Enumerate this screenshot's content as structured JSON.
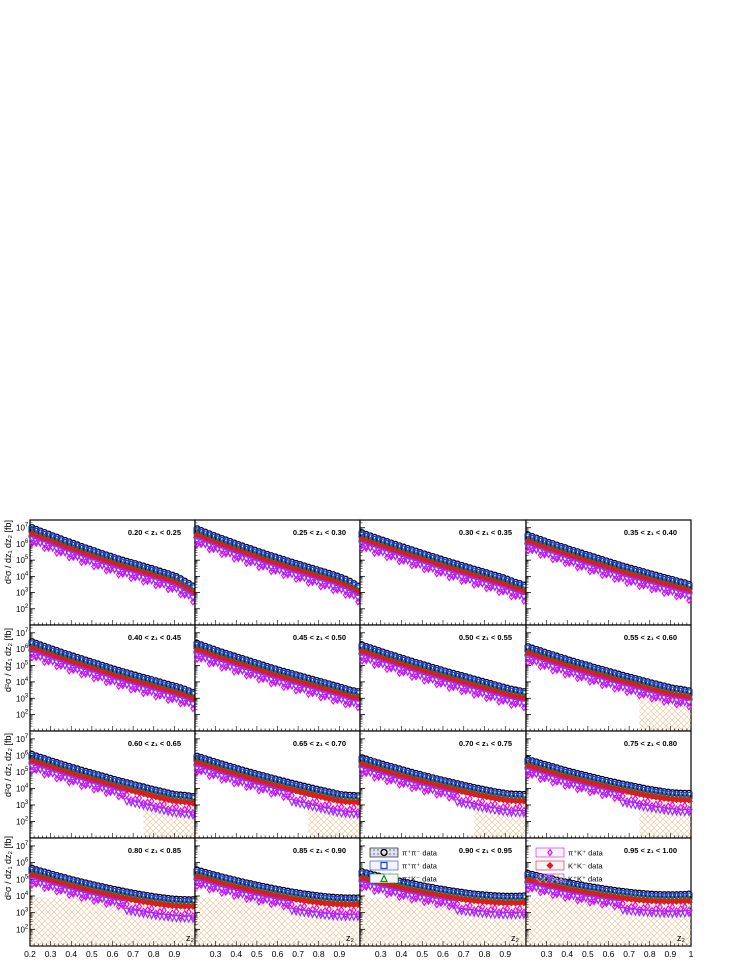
{
  "figure": {
    "ylabel": "d²σ / dz₁ dz₂ [fb]",
    "xlabel": "z₂",
    "xticks": [
      "0.2",
      "0.3",
      "0.4",
      "0.5",
      "0.6",
      "0.7",
      "0.8",
      "0.9",
      "1"
    ],
    "yticks_log10": [
      2,
      3,
      4,
      5,
      6,
      7
    ]
  },
  "chart_data": {
    "type": "scatter",
    "xscale": "linear",
    "yscale": "log",
    "xlim": [
      0.2,
      1.0
    ],
    "ylim": [
      10,
      30000000.0
    ],
    "panel_titles": [
      "0.20 < z₁ < 0.25",
      "0.25 < z₁ < 0.30",
      "0.30 < z₁ < 0.35",
      "0.35 < z₁ < 0.40",
      "0.40 < z₁ < 0.45",
      "0.45 < z₁ < 0.50",
      "0.50 < z₁ < 0.55",
      "0.55 < z₁ < 0.60",
      "0.60 < z₁ < 0.65",
      "0.65 < z₁ < 0.70",
      "0.70 < z₁ < 0.75",
      "0.75 < z₁ < 0.80",
      "0.80 < z₁ < 0.85",
      "0.85 < z₁ < 0.90",
      "0.90 < z₁ < 0.95",
      "0.95 < z₁ < 1.00"
    ],
    "x": [
      0.21,
      0.23,
      0.25,
      0.27,
      0.29,
      0.31,
      0.33,
      0.35,
      0.37,
      0.39,
      0.41,
      0.43,
      0.45,
      0.47,
      0.49,
      0.51,
      0.53,
      0.55,
      0.57,
      0.59,
      0.61,
      0.63,
      0.65,
      0.67,
      0.69,
      0.71,
      0.73,
      0.75,
      0.77,
      0.79,
      0.81,
      0.83,
      0.85,
      0.87,
      0.89,
      0.91,
      0.93,
      0.95,
      0.97,
      0.99
    ],
    "legend": [
      {
        "name": "π⁺π⁻ data",
        "marker": "circle",
        "color": "#000000",
        "panel": 14
      },
      {
        "name": "π⁺π⁺ data",
        "marker": "square",
        "color": "#1f3fe0",
        "panel": 14
      },
      {
        "name": "π⁺K⁻ data",
        "marker": "triangle-up",
        "color": "#1a8a1a",
        "panel": 14
      },
      {
        "name": "π⁺K⁺ data",
        "marker": "diamond",
        "color": "#ee00ee",
        "panel": 15
      },
      {
        "name": "K⁺K⁻ data",
        "marker": "diamond-filled",
        "color": "#e01b1b",
        "panel": 15
      },
      {
        "name": "K⁺K⁺ data",
        "marker": "triangle-down",
        "color": "#9b2cff",
        "panel": 15
      }
    ],
    "series": [
      {
        "name": "π⁺π⁻ data",
        "marker": "circle",
        "color": "#000000",
        "values_log10": [
          [
            7.0,
            6.89,
            6.79,
            6.7,
            6.6,
            6.5,
            6.41,
            6.31,
            6.21,
            6.12,
            6.03,
            5.94,
            5.84,
            5.75,
            5.67,
            5.58,
            5.49,
            5.4,
            5.32,
            5.24,
            5.15,
            5.07,
            4.99,
            4.92,
            4.85,
            4.78,
            4.7,
            4.63,
            4.55,
            4.48,
            4.4,
            4.32,
            4.24,
            4.16,
            4.07,
            3.98,
            3.85,
            3.7,
            3.55,
            3.4
          ],
          [
            6.93,
            6.82,
            6.72,
            6.62,
            6.52,
            6.42,
            6.33,
            6.24,
            6.15,
            6.05,
            5.96,
            5.87,
            5.78,
            5.7,
            5.61,
            5.52,
            5.44,
            5.35,
            5.27,
            5.19,
            5.11,
            5.03,
            4.95,
            4.87,
            4.79,
            4.72,
            4.64,
            4.56,
            4.49,
            4.41,
            4.33,
            4.26,
            4.18,
            4.1,
            4.01,
            3.92,
            3.82,
            3.7,
            3.55,
            3.4
          ],
          [
            6.68,
            6.58,
            6.49,
            6.4,
            6.31,
            6.23,
            6.14,
            6.05,
            5.97,
            5.88,
            5.8,
            5.71,
            5.63,
            5.55,
            5.46,
            5.38,
            5.3,
            5.22,
            5.14,
            5.06,
            4.98,
            4.9,
            4.82,
            4.75,
            4.67,
            4.59,
            4.52,
            4.44,
            4.37,
            4.29,
            4.22,
            4.14,
            4.07,
            3.99,
            3.91,
            3.82,
            3.72,
            3.62,
            3.55,
            3.45
          ],
          [
            6.55,
            6.45,
            6.36,
            6.27,
            6.18,
            6.09,
            6.01,
            5.92,
            5.84,
            5.76,
            5.67,
            5.59,
            5.51,
            5.43,
            5.35,
            5.27,
            5.19,
            5.11,
            5.03,
            4.95,
            4.87,
            4.79,
            4.71,
            4.63,
            4.56,
            4.49,
            4.42,
            4.35,
            4.28,
            4.21,
            4.14,
            4.07,
            4.0,
            3.93,
            3.86,
            3.8,
            3.72,
            3.65,
            3.6,
            3.5
          ],
          [
            6.45,
            6.35,
            6.26,
            6.17,
            6.08,
            5.99,
            5.91,
            5.82,
            5.73,
            5.65,
            5.57,
            5.49,
            5.41,
            5.33,
            5.25,
            5.17,
            5.09,
            5.01,
            4.93,
            4.85,
            4.77,
            4.7,
            4.62,
            4.55,
            4.48,
            4.41,
            4.34,
            4.27,
            4.2,
            4.13,
            4.06,
            3.99,
            3.92,
            3.85,
            3.78,
            3.71,
            3.63,
            3.55,
            3.45,
            3.35
          ],
          [
            6.35,
            6.26,
            6.17,
            6.08,
            5.99,
            5.9,
            5.82,
            5.74,
            5.66,
            5.58,
            5.5,
            5.42,
            5.34,
            5.26,
            5.18,
            5.1,
            5.02,
            4.94,
            4.86,
            4.79,
            4.71,
            4.64,
            4.57,
            4.5,
            4.43,
            4.36,
            4.29,
            4.22,
            4.15,
            4.08,
            4.01,
            3.94,
            3.87,
            3.8,
            3.73,
            3.66,
            3.58,
            3.5,
            3.45,
            3.4
          ],
          [
            6.25,
            6.16,
            6.08,
            5.99,
            5.91,
            5.82,
            5.74,
            5.66,
            5.58,
            5.5,
            5.42,
            5.34,
            5.26,
            5.18,
            5.11,
            5.03,
            4.96,
            4.88,
            4.81,
            4.73,
            4.66,
            4.59,
            4.52,
            4.45,
            4.38,
            4.31,
            4.24,
            4.17,
            4.1,
            4.03,
            3.96,
            3.89,
            3.82,
            3.75,
            3.68,
            3.61,
            3.55,
            3.5,
            3.45,
            3.4
          ],
          [
            6.15,
            6.06,
            5.98,
            5.9,
            5.81,
            5.73,
            5.65,
            5.57,
            5.49,
            5.41,
            5.33,
            5.26,
            5.18,
            5.11,
            5.04,
            4.97,
            4.89,
            4.82,
            4.75,
            4.68,
            4.61,
            4.54,
            4.47,
            4.4,
            4.33,
            4.27,
            4.2,
            4.13,
            4.06,
            4.0,
            3.93,
            3.87,
            3.8,
            3.74,
            3.68,
            3.62,
            3.58,
            3.55,
            3.5,
            3.45
          ],
          [
            6.05,
            5.96,
            5.88,
            5.8,
            5.72,
            5.64,
            5.56,
            5.48,
            5.4,
            5.33,
            5.25,
            5.18,
            5.1,
            5.03,
            4.96,
            4.89,
            4.82,
            4.75,
            4.68,
            4.61,
            4.54,
            4.47,
            4.41,
            4.34,
            4.28,
            4.21,
            4.15,
            4.09,
            4.02,
            3.96,
            3.9,
            3.84,
            3.78,
            3.72,
            3.66,
            3.62,
            3.6,
            3.58,
            3.55,
            3.5
          ],
          [
            5.95,
            5.87,
            5.79,
            5.71,
            5.63,
            5.55,
            5.48,
            5.4,
            5.33,
            5.26,
            5.18,
            5.11,
            5.04,
            4.97,
            4.9,
            4.83,
            4.77,
            4.7,
            4.63,
            4.57,
            4.5,
            4.44,
            4.37,
            4.31,
            4.25,
            4.19,
            4.13,
            4.07,
            4.01,
            3.95,
            3.9,
            3.84,
            3.78,
            3.73,
            3.67,
            3.62,
            3.6,
            3.58,
            3.57,
            3.55
          ],
          [
            5.85,
            5.77,
            5.69,
            5.61,
            5.54,
            5.46,
            5.39,
            5.32,
            5.25,
            5.18,
            5.11,
            5.04,
            4.97,
            4.9,
            4.84,
            4.77,
            4.71,
            4.64,
            4.58,
            4.52,
            4.46,
            4.4,
            4.34,
            4.28,
            4.22,
            4.16,
            4.11,
            4.05,
            4.0,
            3.95,
            3.9,
            3.85,
            3.8,
            3.76,
            3.72,
            3.68,
            3.66,
            3.65,
            3.64,
            3.63
          ],
          [
            5.75,
            5.67,
            5.6,
            5.52,
            5.45,
            5.38,
            5.31,
            5.24,
            5.17,
            5.1,
            5.03,
            4.97,
            4.9,
            4.84,
            4.78,
            4.72,
            4.66,
            4.6,
            4.54,
            4.48,
            4.42,
            4.37,
            4.31,
            4.26,
            4.21,
            4.16,
            4.11,
            4.06,
            4.01,
            3.96,
            3.92,
            3.88,
            3.84,
            3.8,
            3.77,
            3.74,
            3.72,
            3.71,
            3.7,
            3.7
          ],
          [
            5.65,
            5.57,
            5.5,
            5.43,
            5.36,
            5.29,
            5.22,
            5.15,
            5.09,
            5.02,
            4.96,
            4.9,
            4.84,
            4.78,
            4.72,
            4.66,
            4.6,
            4.55,
            4.49,
            4.44,
            4.39,
            4.34,
            4.29,
            4.24,
            4.19,
            4.15,
            4.1,
            4.06,
            4.02,
            3.98,
            3.94,
            3.91,
            3.88,
            3.85,
            3.82,
            3.8,
            3.79,
            3.78,
            3.77,
            3.77
          ],
          [
            5.55,
            5.48,
            5.41,
            5.34,
            5.27,
            5.21,
            5.14,
            5.08,
            5.02,
            4.96,
            4.9,
            4.84,
            4.78,
            4.73,
            4.67,
            4.62,
            4.57,
            4.52,
            4.47,
            4.42,
            4.37,
            4.33,
            4.28,
            4.24,
            4.2,
            4.16,
            4.12,
            4.09,
            4.05,
            4.02,
            3.99,
            3.96,
            3.94,
            3.92,
            3.9,
            3.89,
            3.88,
            3.88,
            3.88,
            3.88
          ],
          [
            5.45,
            5.38,
            5.31,
            5.25,
            5.19,
            5.13,
            5.07,
            5.01,
            4.95,
            4.89,
            4.84,
            4.79,
            4.74,
            4.69,
            4.64,
            4.59,
            4.54,
            4.5,
            4.45,
            4.41,
            4.37,
            4.33,
            4.29,
            4.25,
            4.22,
            4.18,
            4.15,
            4.12,
            4.09,
            4.07,
            4.05,
            4.03,
            4.01,
            4.0,
            3.99,
            3.98,
            3.98,
            3.98,
            3.99,
            4.0
          ],
          [
            5.35,
            5.29,
            5.23,
            5.17,
            5.11,
            5.05,
            5.0,
            4.94,
            4.89,
            4.84,
            4.79,
            4.74,
            4.69,
            4.65,
            4.6,
            4.56,
            4.52,
            4.48,
            4.44,
            4.4,
            4.37,
            4.33,
            4.3,
            4.27,
            4.24,
            4.21,
            4.18,
            4.16,
            4.14,
            4.12,
            4.1,
            4.09,
            4.08,
            4.07,
            4.07,
            4.07,
            4.07,
            4.08,
            4.09,
            4.11
          ]
        ]
      },
      {
        "name": "π⁺π⁺ data",
        "marker": "square",
        "color": "#1f3fe0",
        "offset_log10": -0.12
      },
      {
        "name": "π⁺K⁻ data",
        "marker": "triangle-up",
        "color": "#1a8a1a",
        "offset_log10": -0.3
      },
      {
        "name": "π⁺K⁺ data",
        "marker": "diamond",
        "color": "#ee00ee",
        "offset_log10": -0.85
      },
      {
        "name": "K⁺K⁻ data",
        "marker": "diamond-filled",
        "color": "#e01b1b",
        "offset_log10": -0.4
      },
      {
        "name": "K⁺K⁺ data",
        "marker": "triangle-down",
        "color": "#9b2cff",
        "offset_log10": -0.75
      }
    ]
  }
}
